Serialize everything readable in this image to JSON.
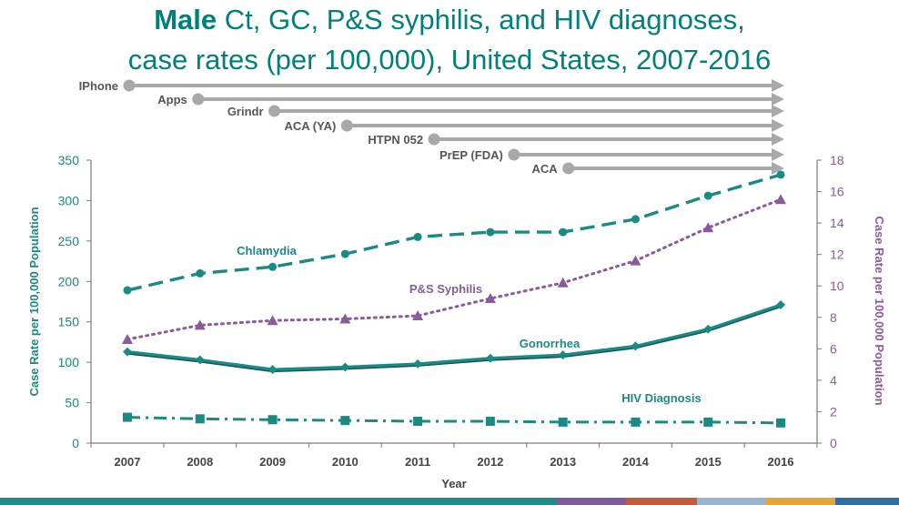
{
  "title": {
    "bold": "Male",
    "line1_rest": " Ct, GC, P&S syphilis, and HIV diagnoses,",
    "line2": "case rates (per 100,000), United States, 2007-2016"
  },
  "timeline": [
    {
      "label": "IPhone",
      "start_year": 2007.0
    },
    {
      "label": "Apps",
      "start_year": 2007.95
    },
    {
      "label": "Grindr",
      "start_year": 2009.0
    },
    {
      "label": "ACA (YA)",
      "start_year": 2010.0
    },
    {
      "label": "HTPN 052",
      "start_year": 2011.2
    },
    {
      "label": "PrEP (FDA)",
      "start_year": 2012.3
    },
    {
      "label": "ACA",
      "start_year": 2013.05
    }
  ],
  "chart_data": {
    "type": "line",
    "x": [
      2007,
      2008,
      2009,
      2010,
      2011,
      2012,
      2013,
      2014,
      2015,
      2016
    ],
    "xlabel": "Year",
    "ylabel_left": "Case Rate per 100,000 Population",
    "ylabel_right": "Case Rate per 100,000 Population",
    "ylim_left": [
      0,
      350
    ],
    "ylim_right": [
      0,
      18
    ],
    "yticks_left": [
      0,
      50,
      100,
      150,
      200,
      250,
      300,
      350
    ],
    "yticks_right": [
      0,
      2,
      4,
      6,
      8,
      10,
      12,
      14,
      16,
      18
    ],
    "series": [
      {
        "name": "Chlamydia",
        "axis": "left",
        "style": "dashed",
        "marker": "circle",
        "color": "#1a8a84",
        "values": [
          189,
          210,
          218,
          234,
          255,
          261,
          261,
          277,
          306,
          332
        ]
      },
      {
        "name": "Gonorrhea",
        "axis": "left",
        "style": "solid",
        "marker": "diamond",
        "color": "#1a8a84",
        "values": [
          113,
          103,
          91,
          94,
          98,
          105,
          109,
          120,
          141,
          171
        ]
      },
      {
        "name": "HIV Diagnosis",
        "axis": "left",
        "style": "dashdot",
        "marker": "square",
        "color": "#1a8a84",
        "values": [
          32,
          30,
          29,
          28,
          27,
          27,
          26,
          26,
          26,
          25
        ]
      },
      {
        "name": "P&S Syphilis",
        "axis": "right",
        "style": "dotted",
        "marker": "triangle",
        "color": "#8a5a9a",
        "values": [
          6.6,
          7.5,
          7.8,
          7.9,
          8.1,
          9.2,
          10.2,
          11.6,
          13.7,
          15.5
        ]
      }
    ],
    "annotations": [
      "Chlamydia",
      "P&S Syphilis",
      "Gonorrhea",
      "HIV Diagnosis"
    ]
  },
  "colors": {
    "teal": "#1a8a84",
    "purple": "#8a5a9a",
    "arrow_gray": "#a8a8a8",
    "axis_gray": "#7a7a7a",
    "strip": [
      "#1f8c86",
      "#7d5a98",
      "#c25a3c",
      "#9ab4cc",
      "#e2a63a",
      "#2f6f9f"
    ]
  }
}
